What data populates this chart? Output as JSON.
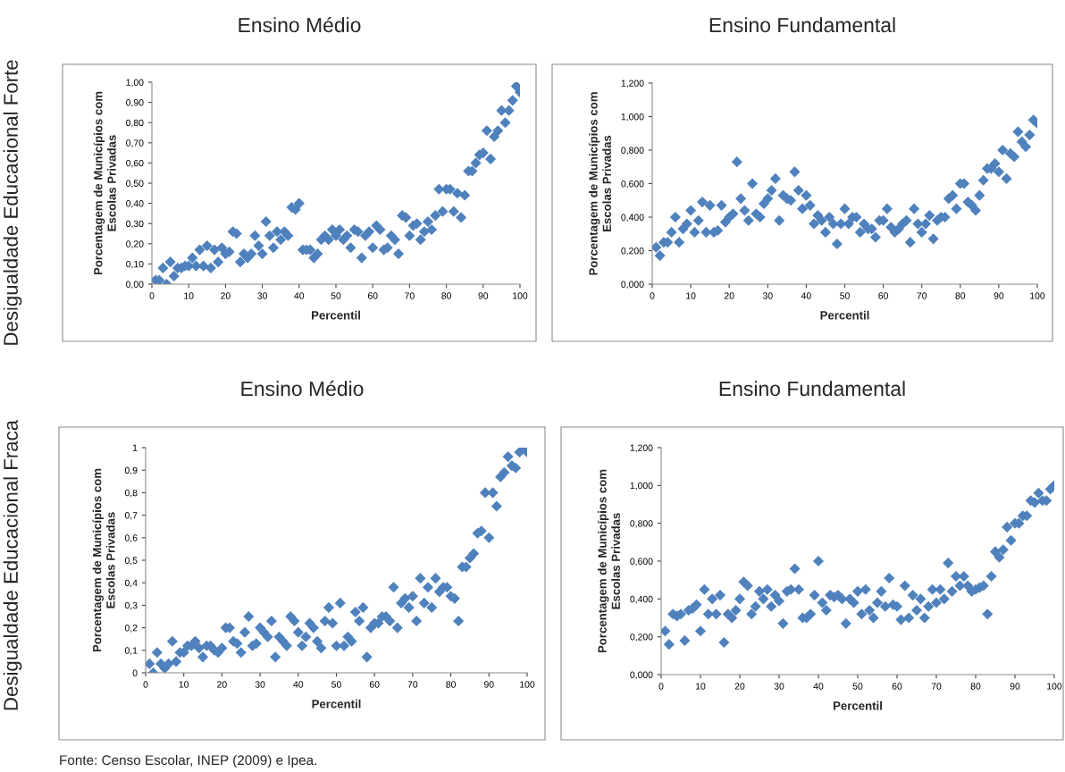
{
  "chart_data": [
    {
      "type": "scatter",
      "title": "Ensino Médio",
      "xlabel": "Percentil",
      "ylabel": "Porcentagem de Municípios com\nEscolas Privadas",
      "annotations": [
        "Desigualdade Educacional Forte"
      ],
      "marker": "diamond",
      "grid": false,
      "legend": false,
      "x": [
        1,
        2,
        3,
        4,
        5,
        6,
        7,
        8,
        9,
        10,
        11,
        12,
        13,
        14,
        15,
        16,
        17,
        18,
        19,
        20,
        21,
        22,
        23,
        24,
        25,
        26,
        27,
        28,
        29,
        30,
        31,
        32,
        33,
        34,
        35,
        36,
        37,
        38,
        39,
        40,
        41,
        42,
        43,
        44,
        45,
        46,
        47,
        48,
        49,
        50,
        51,
        52,
        53,
        54,
        55,
        56,
        57,
        58,
        59,
        60,
        61,
        62,
        63,
        64,
        65,
        66,
        67,
        68,
        69,
        70,
        71,
        72,
        73,
        74,
        75,
        76,
        77,
        78,
        79,
        80,
        81,
        82,
        83,
        84,
        85,
        86,
        87,
        88,
        89,
        90,
        91,
        92,
        93,
        94,
        95,
        96,
        97,
        98,
        99,
        100
      ],
      "series": [
        {
          "color": "#4f81bd",
          "values": [
            0.02,
            0.02,
            0.08,
            0.0,
            0.11,
            0.04,
            0.08,
            0.08,
            0.09,
            0.09,
            0.13,
            0.09,
            0.17,
            0.09,
            0.19,
            0.08,
            0.17,
            0.11,
            0.18,
            0.15,
            0.16,
            0.26,
            0.25,
            0.11,
            0.15,
            0.13,
            0.15,
            0.24,
            0.19,
            0.15,
            0.31,
            0.24,
            0.18,
            0.26,
            0.22,
            0.26,
            0.24,
            0.38,
            0.37,
            0.4,
            0.17,
            0.17,
            0.17,
            0.13,
            0.15,
            0.22,
            0.24,
            0.22,
            0.27,
            0.24,
            0.27,
            0.22,
            0.24,
            0.18,
            0.27,
            0.26,
            0.13,
            0.24,
            0.26,
            0.18,
            0.29,
            0.27,
            0.17,
            0.18,
            0.24,
            0.22,
            0.15,
            0.34,
            0.33,
            0.24,
            0.29,
            0.3,
            0.22,
            0.26,
            0.31,
            0.27,
            0.34,
            0.47,
            0.36,
            0.47,
            0.47,
            0.36,
            0.45,
            0.33,
            0.44,
            0.56,
            0.56,
            0.6,
            0.64,
            0.65,
            0.76,
            0.62,
            0.73,
            0.76,
            0.86,
            0.8,
            0.86,
            0.91,
            0.98,
            0.95
          ]
        }
      ],
      "xlim": [
        0,
        100
      ],
      "xticks": [
        0,
        10,
        20,
        30,
        40,
        50,
        60,
        70,
        80,
        90,
        100
      ],
      "ylim": [
        0,
        1
      ],
      "yticks": [
        {
          "value": 0,
          "label": "0,00"
        },
        {
          "value": 0.1,
          "label": "0,10"
        },
        {
          "value": 0.2,
          "label": "0,20"
        },
        {
          "value": 0.3,
          "label": "0,30"
        },
        {
          "value": 0.4,
          "label": "0,40"
        },
        {
          "value": 0.5,
          "label": "0,50"
        },
        {
          "value": 0.6,
          "label": "0,60"
        },
        {
          "value": 0.7,
          "label": "0,70"
        },
        {
          "value": 0.8,
          "label": "0,80"
        },
        {
          "value": 0.9,
          "label": "0,90"
        },
        {
          "value": 1,
          "label": "1,00"
        }
      ]
    },
    {
      "type": "scatter",
      "title": "Ensino Fundamental",
      "xlabel": "Percentil",
      "ylabel": "Porcentagem de Municípios com\nEscolas Privadas",
      "marker": "diamond",
      "grid": false,
      "legend": false,
      "x": [
        1,
        2,
        3,
        4,
        5,
        6,
        7,
        8,
        9,
        10,
        11,
        12,
        13,
        14,
        15,
        16,
        17,
        18,
        19,
        20,
        21,
        22,
        23,
        24,
        25,
        26,
        27,
        28,
        29,
        30,
        31,
        32,
        33,
        34,
        35,
        36,
        37,
        38,
        39,
        40,
        41,
        42,
        43,
        44,
        45,
        46,
        47,
        48,
        49,
        50,
        51,
        52,
        53,
        54,
        55,
        56,
        57,
        58,
        59,
        60,
        61,
        62,
        63,
        64,
        65,
        66,
        67,
        68,
        69,
        70,
        71,
        72,
        73,
        74,
        75,
        76,
        77,
        78,
        79,
        80,
        81,
        82,
        83,
        84,
        85,
        86,
        87,
        88,
        89,
        90,
        91,
        92,
        93,
        94,
        95,
        96,
        97,
        98,
        99,
        100
      ],
      "series": [
        {
          "color": "#4f81bd",
          "values": [
            0.22,
            0.17,
            0.25,
            0.25,
            0.31,
            0.4,
            0.25,
            0.33,
            0.36,
            0.44,
            0.31,
            0.38,
            0.49,
            0.31,
            0.47,
            0.31,
            0.32,
            0.47,
            0.37,
            0.4,
            0.42,
            0.73,
            0.51,
            0.44,
            0.38,
            0.6,
            0.42,
            0.4,
            0.48,
            0.51,
            0.56,
            0.63,
            0.38,
            0.53,
            0.51,
            0.5,
            0.67,
            0.56,
            0.45,
            0.53,
            0.47,
            0.36,
            0.41,
            0.38,
            0.31,
            0.4,
            0.36,
            0.24,
            0.36,
            0.45,
            0.36,
            0.4,
            0.4,
            0.31,
            0.36,
            0.33,
            0.33,
            0.28,
            0.38,
            0.38,
            0.45,
            0.34,
            0.31,
            0.33,
            0.36,
            0.38,
            0.25,
            0.45,
            0.36,
            0.31,
            0.36,
            0.41,
            0.27,
            0.38,
            0.4,
            0.4,
            0.51,
            0.53,
            0.45,
            0.6,
            0.6,
            0.49,
            0.47,
            0.44,
            0.53,
            0.62,
            0.69,
            0.69,
            0.72,
            0.67,
            0.8,
            0.63,
            0.78,
            0.76,
            0.91,
            0.85,
            0.82,
            0.89,
            0.98,
            0.96
          ]
        }
      ],
      "xlim": [
        0,
        100
      ],
      "xticks": [
        0,
        10,
        20,
        30,
        40,
        50,
        60,
        70,
        80,
        90,
        100
      ],
      "ylim": [
        0,
        1.2
      ],
      "yticks": [
        {
          "value": 0,
          "label": "0,000"
        },
        {
          "value": 0.2,
          "label": "0,200"
        },
        {
          "value": 0.4,
          "label": "0,400"
        },
        {
          "value": 0.6,
          "label": "0,600"
        },
        {
          "value": 0.8,
          "label": "0,800"
        },
        {
          "value": 1,
          "label": "1,000"
        },
        {
          "value": 1.2,
          "label": "1,200"
        }
      ]
    },
    {
      "type": "scatter",
      "title": "Ensino Médio",
      "xlabel": "Percentil",
      "ylabel": "Porcentagem de Municípios com\nEscolas Privadas",
      "annotations": [
        "Desigualdade Educacional Fraca",
        "Fonte: Censo Escolar, INEP (2009) e Ipea."
      ],
      "marker": "diamond",
      "grid": false,
      "legend": false,
      "x": [
        1,
        2,
        3,
        4,
        5,
        6,
        7,
        8,
        9,
        10,
        11,
        12,
        13,
        14,
        15,
        16,
        17,
        18,
        19,
        20,
        21,
        22,
        23,
        24,
        25,
        26,
        27,
        28,
        29,
        30,
        31,
        32,
        33,
        34,
        35,
        36,
        37,
        38,
        39,
        40,
        41,
        42,
        43,
        44,
        45,
        46,
        47,
        48,
        49,
        50,
        51,
        52,
        53,
        54,
        55,
        56,
        57,
        58,
        59,
        60,
        61,
        62,
        63,
        64,
        65,
        66,
        67,
        68,
        69,
        70,
        71,
        72,
        73,
        74,
        75,
        76,
        77,
        78,
        79,
        80,
        81,
        82,
        83,
        84,
        85,
        86,
        87,
        88,
        89,
        90,
        91,
        92,
        93,
        94,
        95,
        96,
        97,
        98,
        99,
        100
      ],
      "series": [
        {
          "color": "#4f81bd",
          "values": [
            0.04,
            0.0,
            0.09,
            0.04,
            0.02,
            0.04,
            0.14,
            0.05,
            0.09,
            0.09,
            0.12,
            0.12,
            0.14,
            0.11,
            0.07,
            0.12,
            0.12,
            0.1,
            0.09,
            0.11,
            0.2,
            0.2,
            0.14,
            0.13,
            0.09,
            0.18,
            0.25,
            0.12,
            0.13,
            0.2,
            0.18,
            0.16,
            0.23,
            0.07,
            0.16,
            0.14,
            0.12,
            0.25,
            0.23,
            0.18,
            0.12,
            0.16,
            0.22,
            0.2,
            0.14,
            0.11,
            0.23,
            0.29,
            0.22,
            0.12,
            0.31,
            0.12,
            0.16,
            0.14,
            0.27,
            0.23,
            0.29,
            0.07,
            0.2,
            0.22,
            0.22,
            0.25,
            0.25,
            0.23,
            0.38,
            0.2,
            0.31,
            0.33,
            0.29,
            0.34,
            0.23,
            0.42,
            0.31,
            0.38,
            0.29,
            0.42,
            0.36,
            0.38,
            0.38,
            0.34,
            0.33,
            0.23,
            0.47,
            0.47,
            0.51,
            0.53,
            0.62,
            0.63,
            0.8,
            0.6,
            0.8,
            0.74,
            0.87,
            0.89,
            0.96,
            0.92,
            0.91,
            0.98,
            1.0,
            0.98
          ]
        }
      ],
      "xlim": [
        0,
        100
      ],
      "xticks": [
        0,
        10,
        20,
        30,
        40,
        50,
        60,
        70,
        80,
        90,
        100
      ],
      "ylim": [
        0,
        1
      ],
      "yticks": [
        0,
        {
          "value": 0.1,
          "label": "0,1"
        },
        {
          "value": 0.2,
          "label": "0,2"
        },
        {
          "value": 0.3,
          "label": "0,3"
        },
        {
          "value": 0.4,
          "label": "0,4"
        },
        {
          "value": 0.5,
          "label": "0,5"
        },
        {
          "value": 0.6,
          "label": "0,6"
        },
        {
          "value": 0.7,
          "label": "0,7"
        },
        {
          "value": 0.8,
          "label": "0,8"
        },
        {
          "value": 0.9,
          "label": "0,9"
        },
        1
      ]
    },
    {
      "type": "scatter",
      "title": "Ensino Fundamental",
      "xlabel": "Percentil",
      "ylabel": "Porcentagem de Municípios com\nEscolas Privadas",
      "marker": "diamond",
      "grid": false,
      "legend": false,
      "x": [
        1,
        2,
        3,
        4,
        5,
        6,
        7,
        8,
        9,
        10,
        11,
        12,
        13,
        14,
        15,
        16,
        17,
        18,
        19,
        20,
        21,
        22,
        23,
        24,
        25,
        26,
        27,
        28,
        29,
        30,
        31,
        32,
        33,
        34,
        35,
        36,
        37,
        38,
        39,
        40,
        41,
        42,
        43,
        44,
        45,
        46,
        47,
        48,
        49,
        50,
        51,
        52,
        53,
        54,
        55,
        56,
        57,
        58,
        59,
        60,
        61,
        62,
        63,
        64,
        65,
        66,
        67,
        68,
        69,
        70,
        71,
        72,
        73,
        74,
        75,
        76,
        77,
        78,
        79,
        80,
        81,
        82,
        83,
        84,
        85,
        86,
        87,
        88,
        89,
        90,
        91,
        92,
        93,
        94,
        95,
        96,
        97,
        98,
        99,
        100
      ],
      "series": [
        {
          "color": "#4f81bd",
          "values": [
            0.23,
            0.16,
            0.32,
            0.31,
            0.32,
            0.18,
            0.34,
            0.35,
            0.37,
            0.23,
            0.45,
            0.32,
            0.4,
            0.32,
            0.42,
            0.17,
            0.32,
            0.3,
            0.34,
            0.4,
            0.49,
            0.47,
            0.32,
            0.36,
            0.44,
            0.4,
            0.45,
            0.36,
            0.42,
            0.39,
            0.27,
            0.44,
            0.45,
            0.56,
            0.45,
            0.3,
            0.3,
            0.32,
            0.42,
            0.6,
            0.38,
            0.34,
            0.42,
            0.41,
            0.42,
            0.4,
            0.27,
            0.4,
            0.38,
            0.44,
            0.32,
            0.45,
            0.34,
            0.3,
            0.38,
            0.44,
            0.36,
            0.51,
            0.37,
            0.36,
            0.29,
            0.47,
            0.3,
            0.42,
            0.34,
            0.4,
            0.3,
            0.36,
            0.45,
            0.38,
            0.45,
            0.4,
            0.59,
            0.44,
            0.52,
            0.47,
            0.52,
            0.47,
            0.44,
            0.45,
            0.46,
            0.47,
            0.32,
            0.52,
            0.65,
            0.62,
            0.66,
            0.78,
            0.71,
            0.8,
            0.8,
            0.84,
            0.84,
            0.92,
            0.91,
            0.96,
            0.92,
            0.92,
            0.98,
            1.0
          ]
        }
      ],
      "xlim": [
        0,
        100
      ],
      "xticks": [
        0,
        10,
        20,
        30,
        40,
        50,
        60,
        70,
        80,
        90,
        100
      ],
      "ylim": [
        0,
        1.2
      ],
      "yticks": [
        {
          "value": 0,
          "label": "0,000"
        },
        {
          "value": 0.2,
          "label": "0,200"
        },
        {
          "value": 0.4,
          "label": "0,400"
        },
        {
          "value": 0.6,
          "label": "0,600"
        },
        {
          "value": 0.8,
          "label": "0,800"
        },
        {
          "value": 1,
          "label": "1,000"
        },
        {
          "value": 1.2,
          "label": "1,200"
        }
      ]
    }
  ]
}
